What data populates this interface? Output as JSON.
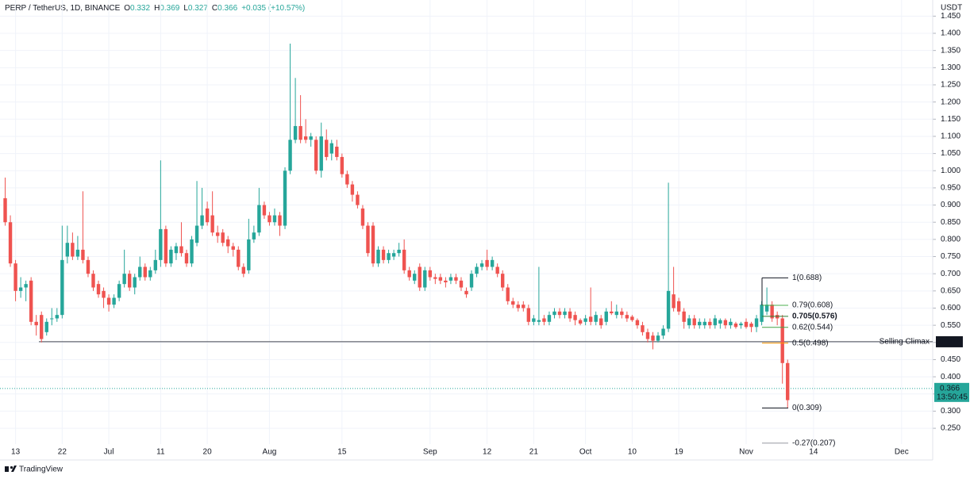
{
  "chart_data": {
    "type": "candlestick",
    "title": "PERP / TetherUS, 1D, BINANCE",
    "ohlc_labels": [
      "O",
      "H",
      "L",
      "C"
    ],
    "last": [
      0.332,
      0.369,
      0.327,
      0.366
    ],
    "change": "+0.035 (+10.57%)",
    "currency": "USDT",
    "up_color": "#26a69a",
    "down_color": "#ef5350",
    "x": [
      "06-11",
      "06-12",
      "06-13",
      "06-14",
      "06-15",
      "06-16",
      "06-17",
      "06-18",
      "06-19",
      "06-20",
      "06-21",
      "06-22",
      "06-23",
      "06-24",
      "06-25",
      "06-26",
      "06-27",
      "06-28",
      "06-29",
      "06-30",
      "07-01",
      "07-02",
      "07-03",
      "07-04",
      "07-05",
      "07-06",
      "07-07",
      "07-08",
      "07-09",
      "07-10",
      "07-11",
      "07-12",
      "07-13",
      "07-14",
      "07-15",
      "07-16",
      "07-17",
      "07-18",
      "07-19",
      "07-20",
      "07-21",
      "07-22",
      "07-23",
      "07-24",
      "07-25",
      "07-26",
      "07-27",
      "07-28",
      "07-29",
      "07-30",
      "07-31",
      "08-01",
      "08-02",
      "08-03",
      "08-04",
      "08-05",
      "08-06",
      "08-07",
      "08-08",
      "08-09",
      "08-10",
      "08-11",
      "08-12",
      "08-13",
      "08-14",
      "08-15",
      "08-16",
      "08-17",
      "08-18",
      "08-19",
      "08-20",
      "08-21",
      "08-22",
      "08-23",
      "08-24",
      "08-25",
      "08-26",
      "08-27",
      "08-28",
      "08-29",
      "08-30",
      "08-31",
      "09-01",
      "09-02",
      "09-03",
      "09-04",
      "09-05",
      "09-06",
      "09-07",
      "09-08",
      "09-09",
      "09-10",
      "09-11",
      "09-12",
      "09-13",
      "09-14",
      "09-15",
      "09-16",
      "09-17",
      "09-18",
      "09-19",
      "09-20",
      "09-21",
      "09-22",
      "09-23",
      "09-24",
      "09-25",
      "09-26",
      "09-27",
      "09-28",
      "09-29",
      "09-30",
      "10-01",
      "10-02",
      "10-03",
      "10-04",
      "10-05",
      "10-06",
      "10-07",
      "10-08",
      "10-09",
      "10-10",
      "10-11",
      "10-12",
      "10-13",
      "10-14",
      "10-15",
      "10-16",
      "10-17",
      "10-18",
      "10-19",
      "10-20",
      "10-21",
      "10-22",
      "10-23",
      "10-24",
      "10-25",
      "10-26",
      "10-27",
      "10-28",
      "10-29",
      "10-30",
      "10-31",
      "11-01",
      "11-02",
      "11-03",
      "11-04",
      "11-05",
      "11-06",
      "11-07",
      "11-08",
      "11-09",
      "11-10"
    ],
    "ohlc": [
      [
        0.92,
        0.98,
        0.84,
        0.85
      ],
      [
        0.85,
        0.87,
        0.72,
        0.73
      ],
      [
        0.73,
        0.74,
        0.62,
        0.65
      ],
      [
        0.65,
        0.69,
        0.63,
        0.66
      ],
      [
        0.66,
        0.68,
        0.62,
        0.67
      ],
      [
        0.68,
        0.69,
        0.55,
        0.56
      ],
      [
        0.56,
        0.58,
        0.52,
        0.55
      ],
      [
        0.58,
        0.59,
        0.5,
        0.51
      ],
      [
        0.53,
        0.57,
        0.52,
        0.56
      ],
      [
        0.57,
        0.6,
        0.55,
        0.57
      ],
      [
        0.57,
        0.6,
        0.56,
        0.58
      ],
      [
        0.58,
        0.84,
        0.57,
        0.74
      ],
      [
        0.75,
        0.84,
        0.73,
        0.79
      ],
      [
        0.79,
        0.82,
        0.74,
        0.75
      ],
      [
        0.75,
        0.81,
        0.74,
        0.77
      ],
      [
        0.77,
        0.94,
        0.73,
        0.74
      ],
      [
        0.74,
        0.75,
        0.69,
        0.7
      ],
      [
        0.7,
        0.71,
        0.65,
        0.66
      ],
      [
        0.67,
        0.68,
        0.63,
        0.64
      ],
      [
        0.65,
        0.66,
        0.6,
        0.63
      ],
      [
        0.63,
        0.64,
        0.59,
        0.61
      ],
      [
        0.61,
        0.64,
        0.6,
        0.63
      ],
      [
        0.63,
        0.68,
        0.62,
        0.67
      ],
      [
        0.67,
        0.77,
        0.66,
        0.7
      ],
      [
        0.7,
        0.71,
        0.65,
        0.66
      ],
      [
        0.66,
        0.7,
        0.64,
        0.69
      ],
      [
        0.69,
        0.75,
        0.68,
        0.72
      ],
      [
        0.72,
        0.73,
        0.68,
        0.69
      ],
      [
        0.69,
        0.72,
        0.68,
        0.71
      ],
      [
        0.71,
        0.77,
        0.7,
        0.74
      ],
      [
        0.74,
        1.03,
        0.72,
        0.83
      ],
      [
        0.83,
        0.84,
        0.72,
        0.73
      ],
      [
        0.73,
        0.78,
        0.72,
        0.77
      ],
      [
        0.76,
        0.79,
        0.74,
        0.78
      ],
      [
        0.78,
        0.85,
        0.75,
        0.76
      ],
      [
        0.76,
        0.77,
        0.72,
        0.73
      ],
      [
        0.73,
        0.81,
        0.72,
        0.8
      ],
      [
        0.79,
        0.97,
        0.78,
        0.84
      ],
      [
        0.84,
        0.95,
        0.83,
        0.87
      ],
      [
        0.89,
        0.91,
        0.84,
        0.85
      ],
      [
        0.87,
        0.94,
        0.81,
        0.82
      ],
      [
        0.82,
        0.84,
        0.79,
        0.81
      ],
      [
        0.82,
        0.83,
        0.78,
        0.79
      ],
      [
        0.8,
        0.81,
        0.76,
        0.78
      ],
      [
        0.78,
        0.79,
        0.75,
        0.77
      ],
      [
        0.77,
        0.78,
        0.71,
        0.72
      ],
      [
        0.72,
        0.73,
        0.69,
        0.7
      ],
      [
        0.71,
        0.86,
        0.7,
        0.8
      ],
      [
        0.8,
        0.84,
        0.79,
        0.82
      ],
      [
        0.82,
        0.95,
        0.81,
        0.9
      ],
      [
        0.9,
        0.91,
        0.86,
        0.87
      ],
      [
        0.87,
        0.88,
        0.84,
        0.85
      ],
      [
        0.85,
        0.89,
        0.84,
        0.87
      ],
      [
        0.87,
        0.88,
        0.81,
        0.84
      ],
      [
        0.84,
        1.01,
        0.83,
        1.0
      ],
      [
        1.0,
        1.37,
        0.99,
        1.09
      ],
      [
        1.09,
        1.27,
        1.08,
        1.13
      ],
      [
        1.13,
        1.22,
        1.08,
        1.09
      ],
      [
        1.1,
        1.15,
        1.08,
        1.09
      ],
      [
        1.09,
        1.11,
        1.07,
        1.1
      ],
      [
        1.09,
        1.1,
        0.99,
        1.0
      ],
      [
        1.0,
        1.14,
        0.98,
        1.1
      ],
      [
        1.09,
        1.12,
        1.03,
        1.04
      ],
      [
        1.05,
        1.09,
        1.03,
        1.08
      ],
      [
        1.07,
        1.09,
        1.03,
        1.04
      ],
      [
        1.04,
        1.05,
        0.98,
        0.99
      ],
      [
        0.99,
        1.0,
        0.95,
        0.96
      ],
      [
        0.96,
        0.97,
        0.91,
        0.93
      ],
      [
        0.93,
        0.94,
        0.89,
        0.9
      ],
      [
        0.89,
        0.9,
        0.83,
        0.84
      ],
      [
        0.84,
        0.85,
        0.75,
        0.76
      ],
      [
        0.84,
        0.85,
        0.72,
        0.73
      ],
      [
        0.73,
        0.78,
        0.72,
        0.77
      ],
      [
        0.77,
        0.78,
        0.73,
        0.74
      ],
      [
        0.74,
        0.77,
        0.73,
        0.76
      ],
      [
        0.75,
        0.77,
        0.74,
        0.76
      ],
      [
        0.76,
        0.79,
        0.75,
        0.77
      ],
      [
        0.77,
        0.8,
        0.7,
        0.71
      ],
      [
        0.71,
        0.72,
        0.68,
        0.69
      ],
      [
        0.68,
        0.71,
        0.67,
        0.7
      ],
      [
        0.72,
        0.73,
        0.65,
        0.66
      ],
      [
        0.66,
        0.72,
        0.65,
        0.71
      ],
      [
        0.71,
        0.72,
        0.68,
        0.69
      ],
      [
        0.69,
        0.7,
        0.67,
        0.685
      ],
      [
        0.69,
        0.7,
        0.67,
        0.68
      ],
      [
        0.68,
        0.69,
        0.66,
        0.675
      ],
      [
        0.68,
        0.7,
        0.67,
        0.69
      ],
      [
        0.69,
        0.7,
        0.67,
        0.68
      ],
      [
        0.68,
        0.69,
        0.65,
        0.66
      ],
      [
        0.65,
        0.66,
        0.63,
        0.64
      ],
      [
        0.66,
        0.71,
        0.65,
        0.7
      ],
      [
        0.7,
        0.73,
        0.69,
        0.72
      ],
      [
        0.72,
        0.74,
        0.71,
        0.73
      ],
      [
        0.74,
        0.77,
        0.71,
        0.72
      ],
      [
        0.72,
        0.75,
        0.71,
        0.74
      ],
      [
        0.72,
        0.73,
        0.69,
        0.7
      ],
      [
        0.7,
        0.71,
        0.65,
        0.66
      ],
      [
        0.66,
        0.67,
        0.61,
        0.62
      ],
      [
        0.62,
        0.63,
        0.6,
        0.61
      ],
      [
        0.61,
        0.62,
        0.59,
        0.6
      ],
      [
        0.61,
        0.62,
        0.59,
        0.6
      ],
      [
        0.6,
        0.61,
        0.55,
        0.56
      ],
      [
        0.56,
        0.58,
        0.55,
        0.57
      ],
      [
        0.56,
        0.72,
        0.55,
        0.565
      ],
      [
        0.57,
        0.58,
        0.55,
        0.56
      ],
      [
        0.56,
        0.59,
        0.55,
        0.58
      ],
      [
        0.58,
        0.6,
        0.57,
        0.59
      ],
      [
        0.59,
        0.6,
        0.57,
        0.58
      ],
      [
        0.58,
        0.6,
        0.57,
        0.59
      ],
      [
        0.59,
        0.6,
        0.56,
        0.57
      ],
      [
        0.58,
        0.59,
        0.55,
        0.565
      ],
      [
        0.565,
        0.57,
        0.55,
        0.555
      ],
      [
        0.56,
        0.58,
        0.55,
        0.57
      ],
      [
        0.575,
        0.66,
        0.55,
        0.56
      ],
      [
        0.56,
        0.59,
        0.55,
        0.58
      ],
      [
        0.57,
        0.58,
        0.54,
        0.55
      ],
      [
        0.56,
        0.6,
        0.55,
        0.59
      ],
      [
        0.59,
        0.62,
        0.58,
        0.585
      ],
      [
        0.58,
        0.61,
        0.57,
        0.59
      ],
      [
        0.59,
        0.6,
        0.57,
        0.58
      ],
      [
        0.58,
        0.59,
        0.56,
        0.57
      ],
      [
        0.575,
        0.58,
        0.56,
        0.565
      ],
      [
        0.565,
        0.57,
        0.54,
        0.55
      ],
      [
        0.55,
        0.56,
        0.52,
        0.53
      ],
      [
        0.53,
        0.54,
        0.5,
        0.51
      ],
      [
        0.52,
        0.53,
        0.48,
        0.505
      ],
      [
        0.505,
        0.53,
        0.5,
        0.52
      ],
      [
        0.52,
        0.55,
        0.51,
        0.54
      ],
      [
        0.54,
        0.965,
        0.53,
        0.65
      ],
      [
        0.64,
        0.72,
        0.59,
        0.6
      ],
      [
        0.62,
        0.63,
        0.58,
        0.59
      ],
      [
        0.59,
        0.6,
        0.54,
        0.56
      ],
      [
        0.55,
        0.58,
        0.54,
        0.57
      ],
      [
        0.57,
        0.58,
        0.54,
        0.55
      ],
      [
        0.55,
        0.57,
        0.54,
        0.56
      ],
      [
        0.55,
        0.57,
        0.54,
        0.56
      ],
      [
        0.56,
        0.57,
        0.54,
        0.55
      ],
      [
        0.55,
        0.58,
        0.54,
        0.57
      ],
      [
        0.555,
        0.57,
        0.54,
        0.565
      ],
      [
        0.565,
        0.57,
        0.54,
        0.55
      ],
      [
        0.55,
        0.57,
        0.54,
        0.56
      ],
      [
        0.555,
        0.56,
        0.54,
        0.545
      ],
      [
        0.55,
        0.56,
        0.54,
        0.555
      ],
      [
        0.56,
        0.57,
        0.54,
        0.545
      ],
      [
        0.555,
        0.56,
        0.53,
        0.545
      ],
      [
        0.545,
        0.58,
        0.53,
        0.57
      ],
      [
        0.56,
        0.62,
        0.55,
        0.61
      ],
      [
        0.59,
        0.66,
        0.58,
        0.61
      ],
      [
        0.61,
        0.62,
        0.56,
        0.57
      ],
      [
        0.58,
        0.59,
        0.55,
        0.57
      ],
      [
        0.57,
        0.58,
        0.38,
        0.44
      ],
      [
        0.44,
        0.45,
        0.309,
        0.332
      ]
    ],
    "xlim": [
      "06-10",
      "12-07"
    ],
    "xticks": [
      {
        "value": "06-13",
        "label": "13"
      },
      {
        "value": "06-22",
        "label": "22"
      },
      {
        "value": "07-01",
        "label": "Jul"
      },
      {
        "value": "07-11",
        "label": "11"
      },
      {
        "value": "07-20",
        "label": "20"
      },
      {
        "value": "08-01",
        "label": "Aug"
      },
      {
        "value": "08-15",
        "label": "15"
      },
      {
        "value": "09-01",
        "label": "Sep"
      },
      {
        "value": "09-12",
        "label": "12"
      },
      {
        "value": "09-21",
        "label": "21"
      },
      {
        "value": "10-01",
        "label": "Oct"
      },
      {
        "value": "10-10",
        "label": "10"
      },
      {
        "value": "10-19",
        "label": "19"
      },
      {
        "value": "11-01",
        "label": "Nov"
      },
      {
        "value": "11-14",
        "label": "14"
      },
      {
        "value": "12-01",
        "label": "Dec"
      }
    ],
    "ylim": [
      0.204,
      1.497
    ],
    "yticks": [
      {
        "value": 0.25,
        "label": "0.250"
      },
      {
        "value": 0.3,
        "label": "0.300"
      },
      {
        "value": 0.35,
        "label": "0.350"
      },
      {
        "value": 0.4,
        "label": "0.400"
      },
      {
        "value": 0.45,
        "label": "0.450"
      },
      {
        "value": 0.5,
        "label": "0.500"
      },
      {
        "value": 0.55,
        "label": "0.550"
      },
      {
        "value": 0.6,
        "label": "0.600"
      },
      {
        "value": 0.65,
        "label": "0.650"
      },
      {
        "value": 0.7,
        "label": "0.700"
      },
      {
        "value": 0.75,
        "label": "0.750"
      },
      {
        "value": 0.8,
        "label": "0.800"
      },
      {
        "value": 0.85,
        "label": "0.850"
      },
      {
        "value": 0.9,
        "label": "0.900"
      },
      {
        "value": 0.95,
        "label": "0.950"
      },
      {
        "value": 1,
        "label": "1.000"
      },
      {
        "value": 1.05,
        "label": "1.050"
      },
      {
        "value": 1.1,
        "label": "1.100"
      },
      {
        "value": 1.15,
        "label": "1.150"
      },
      {
        "value": 1.2,
        "label": "1.200"
      },
      {
        "value": 1.25,
        "label": "1.250"
      },
      {
        "value": 1.3,
        "label": "1.300"
      },
      {
        "value": 1.35,
        "label": "1.350"
      },
      {
        "value": 1.4,
        "label": "1.400"
      },
      {
        "value": 1.45,
        "label": "1.450"
      }
    ],
    "grid": true,
    "horizontal_line": {
      "value": 0.502,
      "label": "Selling Climax",
      "color": "#f23645"
    },
    "last_price": {
      "value": 0.366,
      "countdown": "13:50:45",
      "color": "#26a69a"
    },
    "fib_levels": [
      {
        "value": 0.688,
        "label": "1(0.688)",
        "color": "#131722"
      },
      {
        "value": 0.608,
        "label": "0.79(0.608)",
        "color": "#4caf50"
      },
      {
        "value": 0.576,
        "label": "0.705(0.576)",
        "color": "#2e7d32"
      },
      {
        "value": 0.544,
        "label": "0.62(0.544)",
        "color": "#43a047"
      },
      {
        "value": 0.498,
        "label": "0.5(0.498)",
        "color": "#ff9800"
      },
      {
        "value": 0.309,
        "label": "0(0.309)",
        "color": "#131722"
      },
      {
        "value": 0.207,
        "label": "-0.27(0.207)",
        "color": "#9598a1"
      }
    ]
  },
  "logo": "TradingView"
}
